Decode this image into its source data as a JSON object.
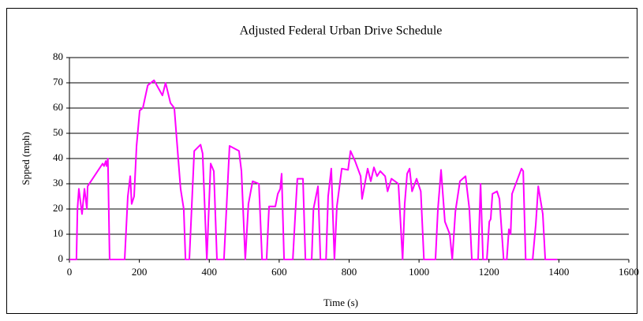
{
  "chart_data": {
    "type": "line",
    "title": "Adjusted Federal Urban Drive Schedule",
    "x_label": "Time (s)",
    "y_label": "Spped (mph)",
    "xlim": [
      0,
      1600
    ],
    "xticks": [
      0,
      200,
      400,
      600,
      800,
      1000,
      1200,
      1400,
      1600
    ],
    "ylim": [
      0,
      80
    ],
    "yticks": [
      0,
      10,
      20,
      30,
      40,
      50,
      60,
      70,
      80
    ],
    "grid": true,
    "series": [
      {
        "color": "#ff00ff",
        "x": [
          0,
          20,
          23,
          27,
          36,
          43,
          50,
          52,
          95,
          99,
          104,
          106,
          110,
          115,
          158,
          167,
          174,
          178,
          185,
          192,
          201,
          210,
          224,
          242,
          266,
          275,
          289,
          300,
          314,
          318,
          327,
          332,
          343,
          357,
          375,
          381,
          393,
          404,
          413,
          422,
          442,
          458,
          485,
          492,
          503,
          512,
          524,
          542,
          551,
          564,
          571,
          589,
          596,
          603,
          607,
          614,
          639,
          646,
          652,
          668,
          675,
          693,
          698,
          711,
          718,
          734,
          740,
          749,
          758,
          765,
          779,
          797,
          804,
          817,
          833,
          837,
          853,
          862,
          871,
          880,
          889,
          903,
          910,
          921,
          941,
          953,
          959,
          966,
          973,
          980,
          993,
          1005,
          1014,
          1047,
          1054,
          1063,
          1074,
          1088,
          1095,
          1104,
          1117,
          1133,
          1144,
          1151,
          1169,
          1176,
          1183,
          1194,
          1201,
          1205,
          1210,
          1223,
          1230,
          1242,
          1251,
          1257,
          1262,
          1266,
          1293,
          1298,
          1305,
          1325,
          1334,
          1341,
          1354,
          1361,
          1395
        ],
        "values": [
          0,
          0,
          20,
          28,
          18,
          28,
          20,
          29,
          38,
          37,
          39,
          37,
          40,
          0,
          0,
          25,
          33,
          22,
          25,
          45,
          59,
          60,
          69,
          71,
          65,
          70,
          62,
          60,
          35,
          28,
          20,
          0,
          0,
          43,
          45.5,
          42,
          0,
          38,
          35,
          0,
          0,
          45,
          43,
          35,
          0,
          22,
          31,
          30,
          0,
          0,
          21,
          21,
          26,
          28,
          34,
          0,
          0,
          18,
          32,
          32,
          0,
          0,
          20,
          29,
          0,
          0,
          25,
          36,
          0,
          21,
          36,
          35.5,
          43,
          39,
          33,
          24,
          36,
          31,
          36.5,
          33,
          35,
          33,
          27,
          32,
          30,
          0,
          22,
          34,
          36,
          27,
          32,
          27,
          0,
          0,
          20,
          35.5,
          15,
          10,
          0,
          19,
          31,
          33,
          20,
          0,
          0,
          30,
          0,
          0,
          15,
          16,
          26,
          27,
          24,
          0,
          0,
          12,
          10,
          26,
          36,
          35,
          0,
          0,
          14,
          29,
          18,
          0,
          0
        ]
      }
    ]
  }
}
